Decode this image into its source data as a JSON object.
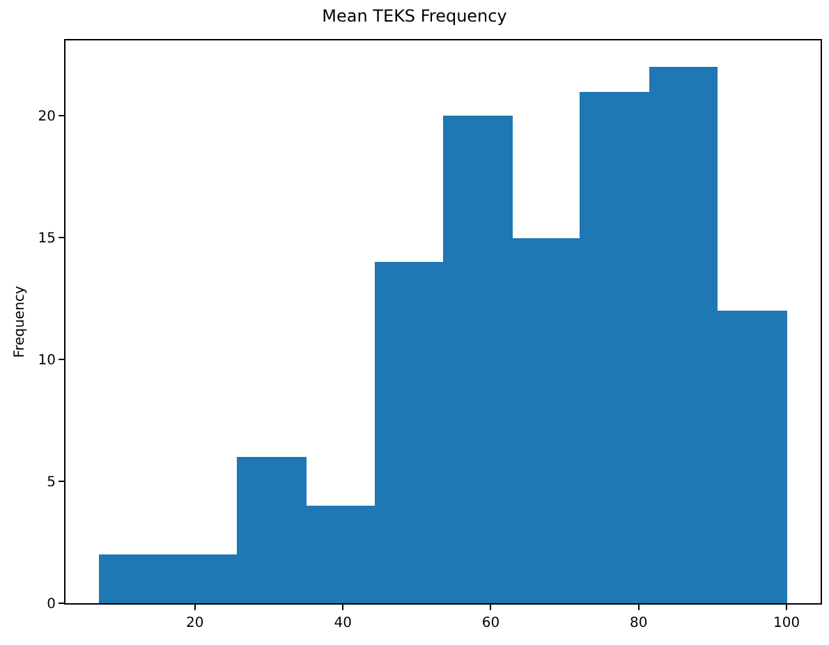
{
  "chart_data": {
    "type": "histogram",
    "title": "Mean TEKS Frequency",
    "ylabel": "Frequency",
    "bins": [
      7.1,
      16.4,
      25.7,
      35.0,
      44.3,
      53.6,
      62.9,
      72.1,
      81.4,
      90.7,
      100
    ],
    "values": [
      2,
      2,
      6,
      4,
      14,
      20,
      15,
      21,
      22,
      12
    ],
    "color": "#1f77b4",
    "xlim": [
      2.5,
      104.6
    ],
    "xticks": [
      20,
      40,
      60,
      80,
      100
    ],
    "ylim": [
      0,
      23.1
    ],
    "yticks": [
      0,
      5,
      10,
      15,
      20
    ],
    "grid": false
  }
}
